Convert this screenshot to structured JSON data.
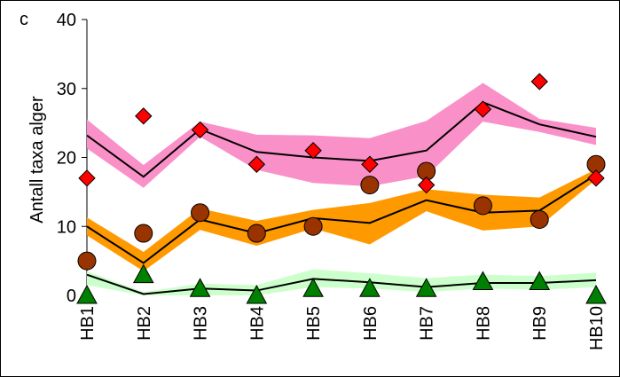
{
  "chart_data": {
    "type": "line",
    "panel_label": "c",
    "y_label": "Antall taxa alger",
    "categories": [
      "HB1",
      "HB2",
      "HB3",
      "HB4",
      "HB5",
      "HB6",
      "HB7",
      "HB8",
      "HB9",
      "HB10"
    ],
    "ylim": [
      0,
      40
    ],
    "yticks": [
      0,
      10,
      20,
      30,
      40
    ],
    "bands": [
      {
        "color": "#f990c8",
        "upper": [
          25.5,
          18.9,
          25.2,
          23.3,
          23.2,
          22.8,
          25.3,
          30.8,
          25.6,
          24.3
        ],
        "lower": [
          21.3,
          15.6,
          23.0,
          18.2,
          16.3,
          15.8,
          17.3,
          25.2,
          23.7,
          21.8
        ]
      },
      {
        "color": "#ff9900",
        "upper": [
          11.3,
          6.3,
          12.6,
          10.8,
          12.4,
          13.4,
          15.4,
          14.6,
          14.2,
          18.3
        ],
        "lower": [
          8.7,
          3.5,
          9.5,
          7.2,
          9.7,
          7.4,
          12.2,
          9.4,
          10.0,
          16.8
        ]
      },
      {
        "color": "#ccffcc",
        "upper": [
          3.5,
          0.5,
          1.7,
          1.5,
          3.8,
          3.2,
          2.5,
          3.0,
          2.8,
          3.3
        ],
        "lower": [
          1.5,
          0,
          0,
          0,
          1.2,
          1.0,
          0.5,
          1.0,
          0.8,
          1.2
        ]
      }
    ],
    "series": [
      {
        "kind": "line",
        "color": "#000000",
        "values": [
          23.2,
          17.2,
          24.1,
          20.8,
          20.0,
          19.5,
          21.0,
          28.0,
          24.8,
          23.0
        ]
      },
      {
        "kind": "line",
        "color": "#000000",
        "values": [
          10,
          4.7,
          11,
          9,
          11.2,
          10.5,
          13.8,
          12,
          12.3,
          17.5
        ]
      },
      {
        "kind": "line",
        "color": "#000000",
        "values": [
          3,
          0.2,
          1.0,
          0.7,
          2.4,
          1.9,
          1.2,
          1.8,
          1.8,
          2.2
        ]
      },
      {
        "kind": "triangle",
        "color": "#008000",
        "values": [
          0,
          3,
          1,
          0,
          1,
          1,
          1,
          2,
          2,
          0
        ]
      },
      {
        "kind": "circle",
        "color": "#993300",
        "values": [
          5,
          9,
          12,
          9,
          10,
          16,
          18,
          13,
          11,
          19
        ]
      },
      {
        "kind": "diamond",
        "color": "#ff0000",
        "values": [
          17,
          26,
          24,
          19,
          21,
          19,
          16,
          27,
          31,
          17
        ]
      }
    ]
  }
}
